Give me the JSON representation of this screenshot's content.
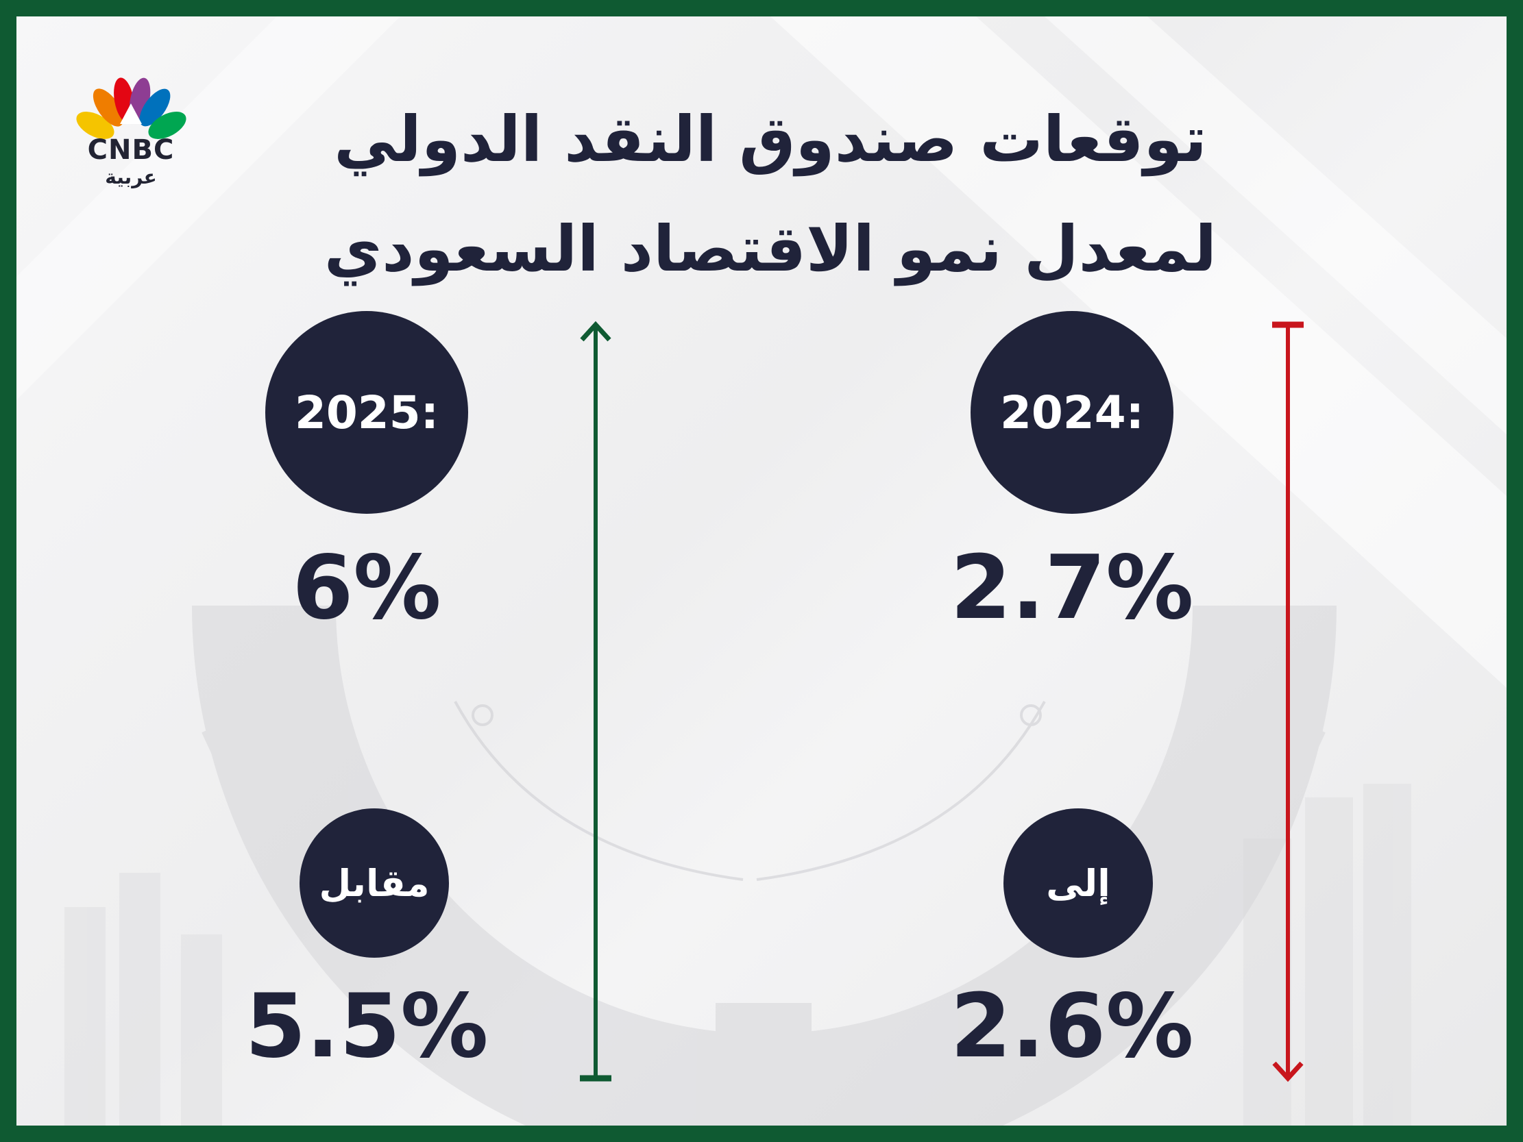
{
  "brand": {
    "logo_name": "CNBC",
    "logo_sub": "عربية",
    "peacock_colors": [
      "#f5c400",
      "#ef7d00",
      "#e30613",
      "#8e3d93",
      "#0071bc",
      "#00a651"
    ]
  },
  "title": {
    "line1": "توقعات صندوق النقد الدولي",
    "line2": "لمعدل نمو الاقتصاد السعودي"
  },
  "columns": {
    "left": {
      "year_label": "2024:",
      "new_value": "2.7%",
      "connector_label": "إلى",
      "old_value": "2.6%",
      "arrow_direction": "down",
      "arrow_color": "#c8161d"
    },
    "right": {
      "year_label": "2025:",
      "new_value": "6%",
      "connector_label": "مقابل",
      "old_value": "5.5%",
      "arrow_direction": "up",
      "arrow_color": "#0f5a32"
    }
  },
  "colors": {
    "frame": "#0f5a32",
    "navy": "#20233a"
  }
}
